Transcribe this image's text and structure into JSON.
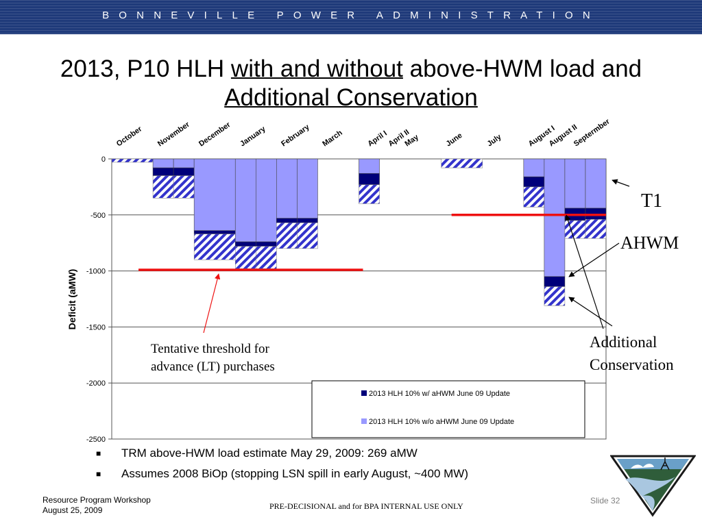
{
  "banner": "BONNEVILLE POWER ADMINISTRATION",
  "title": {
    "p1": "2013, P10 HLH ",
    "u1": "with and without",
    "p2": " above-HWM load and ",
    "u2": "Additional Conservation"
  },
  "chart_data": {
    "type": "bar",
    "stacked": true,
    "ylabel": "Deficit (aMW)",
    "ylim": [
      -2500,
      0
    ],
    "yticks": [
      0,
      -500,
      -1000,
      -1500,
      -2000,
      -2500
    ],
    "grid": true,
    "legend_position": "bottom-right",
    "categories": [
      "October",
      "November",
      "December",
      "January",
      "February",
      "March",
      "April I",
      "April II",
      "May",
      "June",
      "July",
      "August I",
      "August II",
      "Septermber"
    ],
    "columns": [
      {
        "start": 0,
        "width": 2,
        "wo": 0,
        "w": 0,
        "cons": [
          0,
          -30
        ]
      },
      {
        "start": 2,
        "width": 1,
        "wo": -80,
        "w": -150,
        "cons": [
          -150,
          -350
        ]
      },
      {
        "start": 3,
        "width": 1,
        "wo": -80,
        "w": -150,
        "cons": [
          -150,
          -350
        ]
      },
      {
        "start": 4,
        "width": 2,
        "wo": -640,
        "w": -670,
        "cons": [
          -670,
          -900
        ]
      },
      {
        "start": 6,
        "width": 1,
        "wo": -740,
        "w": -780,
        "cons": [
          -780,
          -980
        ]
      },
      {
        "start": 7,
        "width": 1,
        "wo": -740,
        "w": -780,
        "cons": [
          -780,
          -980
        ]
      },
      {
        "start": 8,
        "width": 1,
        "wo": -530,
        "w": -570,
        "cons": [
          -570,
          -800
        ]
      },
      {
        "start": 9,
        "width": 1,
        "wo": -530,
        "w": -570,
        "cons": [
          -570,
          -800
        ]
      },
      {
        "start": 12,
        "width": 1,
        "wo": -130,
        "w": -230,
        "cons": [
          -230,
          -400
        ]
      },
      {
        "start": 16,
        "width": 2,
        "wo": 0,
        "w": 0,
        "cons": [
          0,
          -80
        ]
      },
      {
        "start": 20,
        "width": 1,
        "wo": -160,
        "w": -250,
        "cons": [
          -250,
          -430
        ]
      },
      {
        "start": 21,
        "width": 1,
        "wo": -1050,
        "w": -1140,
        "cons": [
          -1140,
          -1310
        ]
      },
      {
        "start": 22,
        "width": 1,
        "wo": -440,
        "w": -550,
        "cons": [
          -550,
          -710
        ]
      },
      {
        "start": 23,
        "width": 1,
        "wo": -440,
        "w": -540,
        "cons": [
          -540,
          -710
        ]
      }
    ],
    "thresholds": [
      {
        "from": 1.3,
        "to": 12.2,
        "value": -990
      },
      {
        "from": 16.5,
        "to": 24,
        "value": -500
      }
    ],
    "series": [
      {
        "name": "2013 HLH 10% w/ aHWM June 09 Update",
        "color": "#00007a"
      },
      {
        "name": "2013 HLH 10% w/o aHWM June 09 Update",
        "color": "#9999ff"
      }
    ],
    "hatch_color": "#3333cc",
    "threshold_color": "#ee1111"
  },
  "annotations": {
    "t1": "T1",
    "ahwm": "AHWM",
    "additional_conservation": [
      "Additional",
      "Conservation"
    ],
    "threshold_note": [
      "Tentative threshold for",
      "advance (LT) purchases"
    ]
  },
  "bullets": [
    "TRM above-HWM load estimate May 29, 2009: 269 aMW",
    "Assumes 2008 BiOp (stopping LSN spill in early August, ~400 MW)"
  ],
  "footer": {
    "line1": "Resource Program Workshop",
    "line2": "August 25, 2009",
    "center": "PRE-DECISIONAL and for BPA INTERNAL USE ONLY",
    "slide": "Slide 32"
  }
}
